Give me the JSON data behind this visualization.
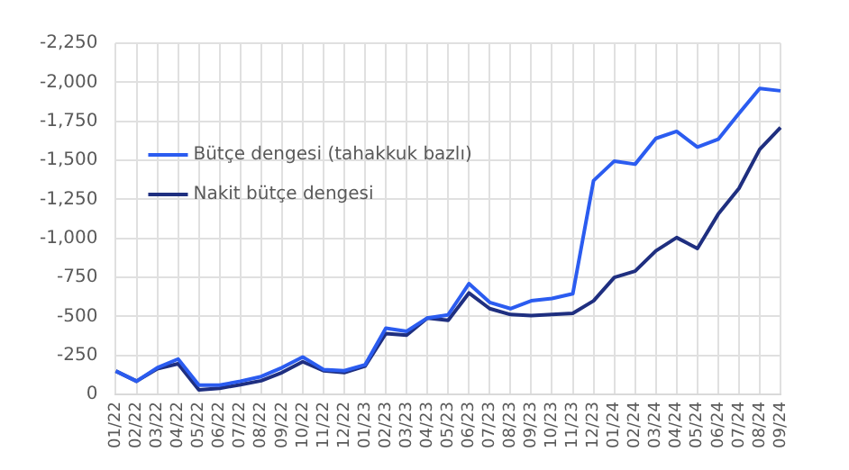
{
  "chart_data": {
    "type": "line",
    "categories": [
      "01/22",
      "02/22",
      "03/22",
      "04/22",
      "05/22",
      "06/22",
      "07/22",
      "08/22",
      "09/22",
      "10/22",
      "11/22",
      "12/22",
      "01/23",
      "02/23",
      "03/23",
      "04/23",
      "05/23",
      "06/23",
      "07/23",
      "08/23",
      "09/23",
      "10/23",
      "11/23",
      "12/23",
      "01/24",
      "02/24",
      "03/24",
      "04/24",
      "05/24",
      "06/24",
      "07/24",
      "08/24",
      "09/24"
    ],
    "series": [
      {
        "name": "Bütçe dengesi (tahakkuk bazlı)",
        "color": "#2b5cf0",
        "values": [
          -150,
          -85,
          -172,
          -227,
          -60,
          -60,
          -85,
          -115,
          -172,
          -240,
          -160,
          -152,
          -190,
          -425,
          -405,
          -490,
          -510,
          -710,
          -590,
          -550,
          -600,
          -615,
          -645,
          -1370,
          -1495,
          -1475,
          -1640,
          -1685,
          -1585,
          -1635,
          -1800,
          -1960,
          -1945
        ]
      },
      {
        "name": "Nakit bütçe dengesi",
        "color": "#1f2f80",
        "values": [
          -150,
          -85,
          -165,
          -197,
          -30,
          -40,
          -63,
          -88,
          -140,
          -210,
          -152,
          -140,
          -182,
          -390,
          -380,
          -490,
          -475,
          -650,
          -550,
          -512,
          -505,
          -512,
          -520,
          -600,
          -750,
          -790,
          -920,
          -1005,
          -935,
          -1155,
          -1320,
          -1570,
          -1710
        ]
      }
    ],
    "ylim": [
      0,
      -2250
    ],
    "yticks": [
      0,
      -250,
      -500,
      -750,
      {
        "value": -1000,
        "label": "-1,000"
      },
      {
        "value": -1250,
        "label": "-1,250"
      },
      {
        "value": -1500,
        "label": "-1,500"
      },
      {
        "value": -1750,
        "label": "-1,750"
      },
      {
        "value": -2000,
        "label": "-2,000"
      },
      {
        "value": -2250,
        "label": "-2,250"
      }
    ],
    "grid": true,
    "legend": "top left",
    "marker": "none",
    "line_style": "solid"
  }
}
